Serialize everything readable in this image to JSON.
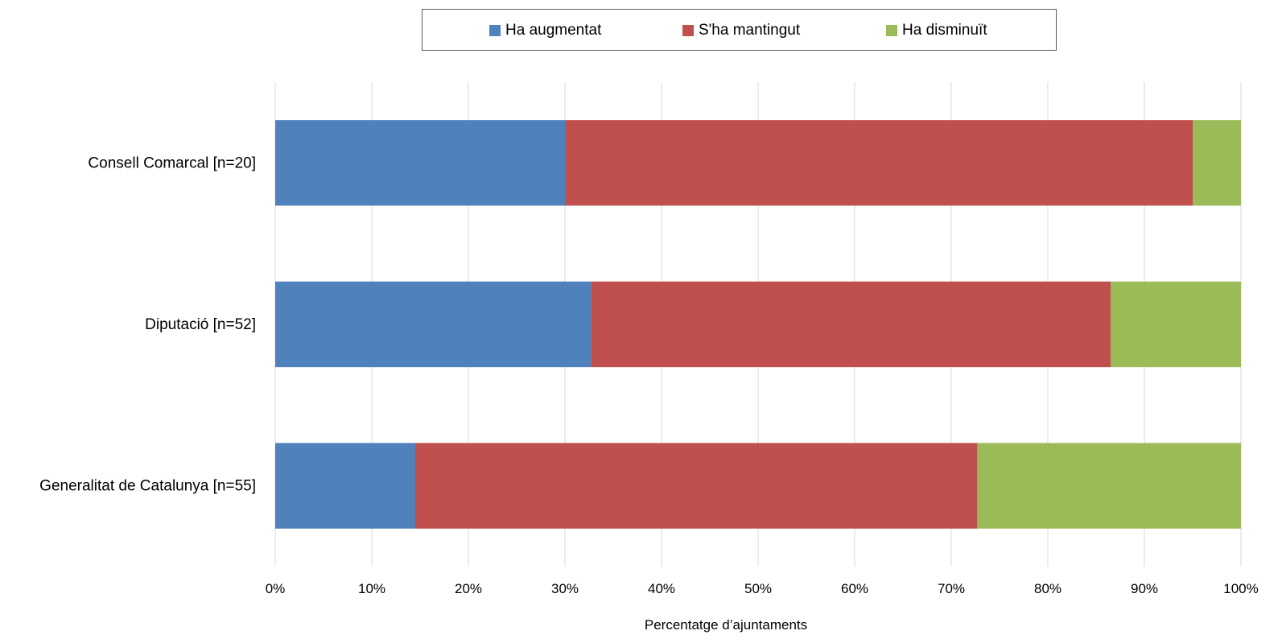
{
  "chart_data": {
    "type": "bar",
    "orientation": "horizontal",
    "stacked": true,
    "percent_stacked": true,
    "title": "",
    "xlabel": "Percentatge d’ajuntaments",
    "ylabel": "",
    "xlim": [
      0,
      100
    ],
    "x_ticks": [
      "0%",
      "10%",
      "20%",
      "30%",
      "40%",
      "50%",
      "60%",
      "70%",
      "80%",
      "90%",
      "100%"
    ],
    "categories": [
      "Consell Comarcal [n=20]",
      "Diputació [n=52]",
      "Generalitat de Catalunya [n=55]"
    ],
    "series": [
      {
        "name": "Ha augmentat",
        "color": "#4f81bd",
        "values": [
          30.0,
          32.7,
          14.5
        ]
      },
      {
        "name": "S'ha mantingut",
        "color": "#c0504d",
        "values": [
          65.0,
          53.8,
          58.2
        ]
      },
      {
        "name": "Ha disminuït",
        "color": "#9bbb59",
        "values": [
          5.0,
          13.5,
          27.3
        ]
      }
    ],
    "grid": true,
    "legend_position": "top"
  }
}
